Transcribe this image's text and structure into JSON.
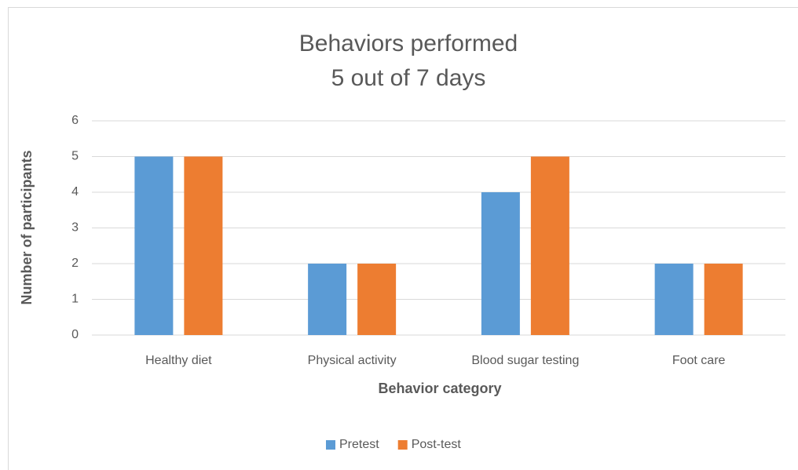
{
  "chart_data": {
    "type": "bar",
    "title": [
      "Behaviors performed",
      "5 out of 7 days"
    ],
    "x_label": "Behavior category",
    "y_label": "Number of participants",
    "categories": [
      "Healthy diet",
      "Physical activity",
      "Blood sugar testing",
      "Foot care"
    ],
    "series": [
      {
        "name": "Pretest",
        "color": "#5b9bd5",
        "values": [
          5,
          2,
          4,
          2
        ]
      },
      {
        "name": "Post-test",
        "color": "#ed7d31",
        "values": [
          5,
          2,
          5,
          2
        ]
      }
    ],
    "ylim": [
      0,
      6
    ],
    "yticks": [
      0,
      1,
      2,
      3,
      4,
      5,
      6
    ],
    "grid": true,
    "legend": "bottom"
  }
}
